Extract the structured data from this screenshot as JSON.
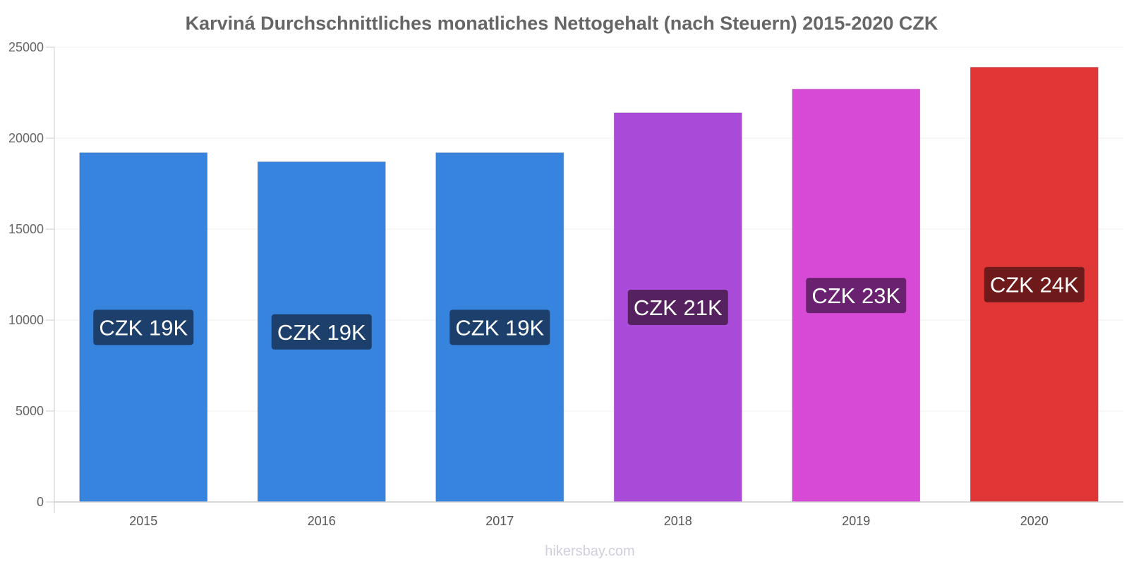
{
  "chart_data": {
    "type": "bar",
    "title": "Karviná Durchschnittliches monatliches Nettogehalt (nach Steuern) 2015-2020 CZK",
    "categories": [
      "2015",
      "2016",
      "2017",
      "2018",
      "2019",
      "2020"
    ],
    "values": [
      19200,
      18700,
      19200,
      21400,
      22700,
      23900
    ],
    "data_labels": [
      "CZK 19K",
      "CZK 19K",
      "CZK 19K",
      "CZK 21K",
      "CZK 23K",
      "CZK 24K"
    ],
    "bar_colors": [
      "#3784de",
      "#3784de",
      "#3784de",
      "#a94ad9",
      "#d64ad6",
      "#e03636"
    ],
    "label_bg_colors": [
      "#1c3f6c",
      "#1c3f6c",
      "#1c3f6c",
      "#56215f",
      "#6a2170",
      "#6e1a1a"
    ],
    "ylim": [
      0,
      25000
    ],
    "yticks": [
      0,
      5000,
      10000,
      15000,
      20000,
      25000
    ],
    "xlabel": "",
    "ylabel": "",
    "grid": true
  },
  "watermark": "hikersbay.com"
}
